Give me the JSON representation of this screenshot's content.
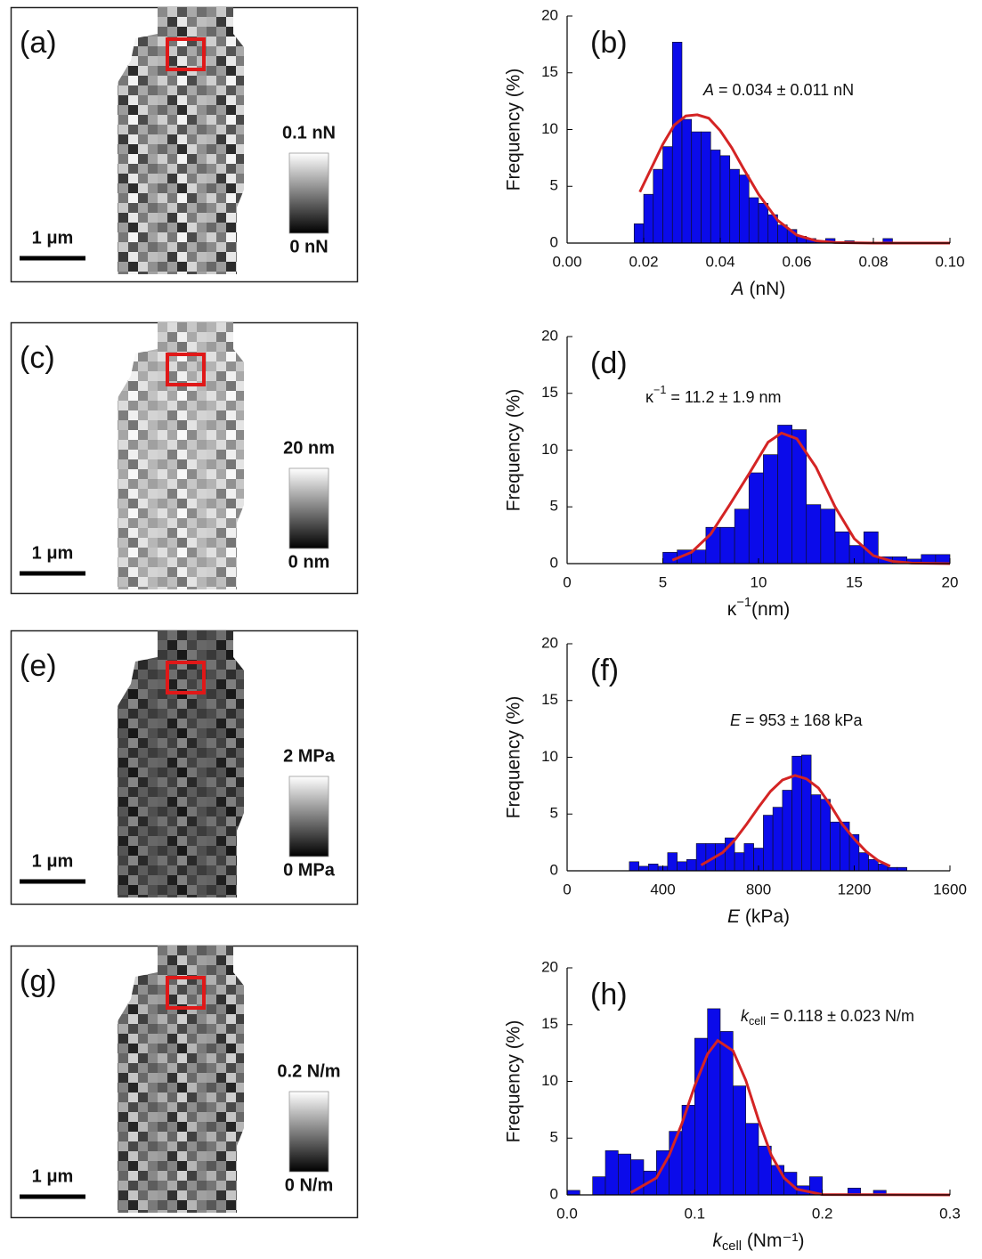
{
  "panels": [
    {
      "label": "(a)",
      "scale_bar": "1 μm",
      "colorbar_max": "0.1 nN",
      "colorbar_min": "0 nN"
    },
    {
      "label": "(c)",
      "scale_bar": "1 μm",
      "colorbar_max": "20 nm",
      "colorbar_min": "0 nm"
    },
    {
      "label": "(e)",
      "scale_bar": "1 μm",
      "colorbar_max": "2 MPa",
      "colorbar_min": "0 MPa"
    },
    {
      "label": "(g)",
      "scale_bar": "1 μm",
      "colorbar_max": "0.2 N/m",
      "colorbar_min": "0 N/m"
    }
  ],
  "chart_data": [
    {
      "type": "histogram",
      "label": "(b)",
      "ylabel": "Frequency (%)",
      "xlabel": {
        "symbol": "A",
        "italic": true,
        "rest": " (nN)"
      },
      "annotation": {
        "symbol": "A",
        "italic": true,
        "rest": " = 0.034 ± 0.011 nN"
      },
      "color": "#0b0bea",
      "xlim": [
        0,
        0.1
      ],
      "xticks": [
        {
          "value": 0,
          "label": "0.00"
        },
        {
          "value": 0.02,
          "label": "0.02"
        },
        {
          "value": 0.04,
          "label": "0.04"
        },
        {
          "value": 0.06,
          "label": "0.06"
        },
        {
          "value": 0.08,
          "label": "0.08"
        },
        {
          "value": 0.1,
          "label": "0.10"
        }
      ],
      "ylim": [
        0,
        20
      ],
      "yticks": [
        0,
        5,
        10,
        15,
        20
      ],
      "bins": [
        0.0175,
        0.02,
        0.0225,
        0.025,
        0.0275,
        0.03,
        0.0325,
        0.035,
        0.0375,
        0.04,
        0.0425,
        0.045,
        0.0475,
        0.05,
        0.0525,
        0.055,
        0.0575,
        0.06,
        0.0625,
        0.065,
        0.0675,
        0.07,
        0.0725,
        0.075,
        0.0775,
        0.08,
        0.0825,
        0.085
      ],
      "values": [
        1.7,
        4.3,
        6.5,
        8.5,
        17.7,
        10.9,
        9.8,
        9.8,
        8.2,
        7.7,
        6.5,
        6.0,
        4.0,
        3.5,
        2.5,
        1.6,
        1.2,
        0.6,
        0.4,
        0.2,
        0.4,
        0,
        0.2,
        0,
        0,
        0,
        0.4
      ],
      "fit": {
        "color": "#d42424",
        "x": [
          0.019,
          0.022,
          0.025,
          0.028,
          0.031,
          0.034,
          0.037,
          0.04,
          0.043,
          0.046,
          0.05,
          0.055,
          0.06,
          0.065,
          0.07,
          0.08,
          0.1
        ],
        "values": [
          4.5,
          6.6,
          8.7,
          10.4,
          11.2,
          11.3,
          11.0,
          9.9,
          8.4,
          6.6,
          4.3,
          2.0,
          0.7,
          0.2,
          0.05,
          0,
          0
        ]
      }
    },
    {
      "type": "histogram",
      "label": "(d)",
      "ylabel": "Frequency (%)",
      "xlabel": {
        "symbol": "κ",
        "italic": false,
        "sup": "−1",
        "rest": "(nm)"
      },
      "annotation": {
        "symbol": "κ",
        "italic": false,
        "sup": "−1",
        "rest": " = 11.2 ± 1.9 nm"
      },
      "color": "#0b0bea",
      "xlim": [
        0,
        20
      ],
      "xticks": [
        0,
        5,
        10,
        15,
        20
      ],
      "ylim": [
        0,
        20
      ],
      "yticks": [
        0,
        5,
        10,
        15,
        20
      ],
      "bins": [
        5,
        5.75,
        6.5,
        7.25,
        8,
        8.75,
        9.5,
        10.25,
        11,
        11.75,
        12.5,
        13.25,
        14,
        14.75,
        15.5,
        16.25,
        17,
        17.75,
        18.5,
        19.25,
        20
      ],
      "values": [
        1.0,
        1.2,
        1.2,
        3.2,
        3.2,
        4.8,
        8.0,
        9.6,
        12.2,
        11.8,
        5.2,
        4.8,
        2.8,
        1.6,
        2.8,
        0.6,
        0.6,
        0.4,
        0.8,
        0.8
      ],
      "fit": {
        "color": "#d42424",
        "x": [
          5.5,
          6.5,
          7.5,
          8.5,
          9.5,
          10.5,
          11.2,
          12,
          13,
          14,
          15,
          16,
          17,
          18,
          20
        ],
        "values": [
          0.3,
          1.0,
          2.6,
          5.2,
          7.9,
          10.7,
          11.5,
          11.0,
          8.5,
          5.0,
          2.2,
          0.7,
          0.2,
          0.05,
          0
        ]
      }
    },
    {
      "type": "histogram",
      "label": "(f)",
      "ylabel": "Frequency (%)",
      "xlabel": {
        "symbol": "E",
        "italic": true,
        "rest": " (kPa)"
      },
      "annotation": {
        "symbol": "E",
        "italic": true,
        "rest": " = 953 ± 168 kPa"
      },
      "color": "#0b0bea",
      "xlim": [
        0,
        1600
      ],
      "xticks": [
        0,
        400,
        800,
        1200,
        1600
      ],
      "ylim": [
        0,
        20
      ],
      "yticks": [
        0,
        5,
        10,
        15,
        20
      ],
      "bins": [
        260,
        300,
        340,
        380,
        420,
        460,
        500,
        540,
        580,
        620,
        660,
        700,
        740,
        780,
        820,
        860,
        900,
        940,
        980,
        1020,
        1060,
        1100,
        1140,
        1180,
        1220,
        1260,
        1300,
        1340,
        1380,
        1420
      ],
      "values": [
        0.8,
        0.4,
        0.6,
        0.4,
        1.6,
        0.8,
        1.0,
        2.4,
        2.4,
        2.4,
        2.9,
        1.6,
        2.4,
        2.0,
        4.9,
        5.6,
        7.1,
        10.1,
        10.2,
        6.7,
        6.3,
        4.3,
        4.3,
        3.2,
        1.6,
        1.0,
        0.6,
        0.3,
        0.3
      ],
      "fit": {
        "color": "#d42424",
        "x": [
          560,
          650,
          700,
          750,
          800,
          850,
          900,
          953,
          1000,
          1050,
          1100,
          1150,
          1200,
          1250,
          1300,
          1350
        ],
        "values": [
          0.5,
          1.6,
          2.7,
          4.1,
          5.6,
          7.0,
          8.0,
          8.4,
          8.1,
          7.3,
          5.8,
          4.1,
          2.8,
          1.7,
          0.9,
          0.4
        ]
      }
    },
    {
      "type": "histogram",
      "label": "(h)",
      "ylabel": "Frequency (%)",
      "xlabel": {
        "symbol": "k",
        "italic": true,
        "sub": "cell",
        "rest": " (Nm⁻¹)"
      },
      "annotation": {
        "symbol": "k",
        "italic": true,
        "sub": "cell",
        "rest": " = 0.118 ± 0.023 N/m"
      },
      "color": "#0b0bea",
      "xlim": [
        0,
        0.3
      ],
      "xticks": [
        {
          "value": 0,
          "label": "0.0"
        },
        {
          "value": 0.1,
          "label": "0.1"
        },
        {
          "value": 0.2,
          "label": "0.2"
        },
        {
          "value": 0.3,
          "label": "0.3"
        }
      ],
      "ylim": [
        0,
        20
      ],
      "yticks": [
        0,
        5,
        10,
        15,
        20
      ],
      "bins": [
        0,
        0.01,
        0.02,
        0.03,
        0.04,
        0.05,
        0.06,
        0.07,
        0.08,
        0.09,
        0.1,
        0.11,
        0.12,
        0.13,
        0.14,
        0.15,
        0.16,
        0.17,
        0.18,
        0.19,
        0.2,
        0.21,
        0.22,
        0.23,
        0.24,
        0.25,
        0.26
      ],
      "values": [
        0.4,
        0,
        1.6,
        3.9,
        3.6,
        3.1,
        2.1,
        3.9,
        5.6,
        7.9,
        13.8,
        16.4,
        14.4,
        9.6,
        6.3,
        4.3,
        2.6,
        2.0,
        0.8,
        1.6,
        0,
        0,
        0.6,
        0,
        0.4,
        0
      ],
      "fit": {
        "color": "#d42424",
        "x": [
          0.05,
          0.07,
          0.08,
          0.09,
          0.1,
          0.11,
          0.118,
          0.13,
          0.14,
          0.15,
          0.16,
          0.17,
          0.18,
          0.2,
          0.3
        ],
        "values": [
          0.2,
          1.5,
          3.5,
          6.3,
          9.6,
          12.4,
          13.6,
          12.7,
          10.1,
          6.6,
          3.5,
          1.5,
          0.5,
          0.03,
          0
        ]
      }
    }
  ]
}
